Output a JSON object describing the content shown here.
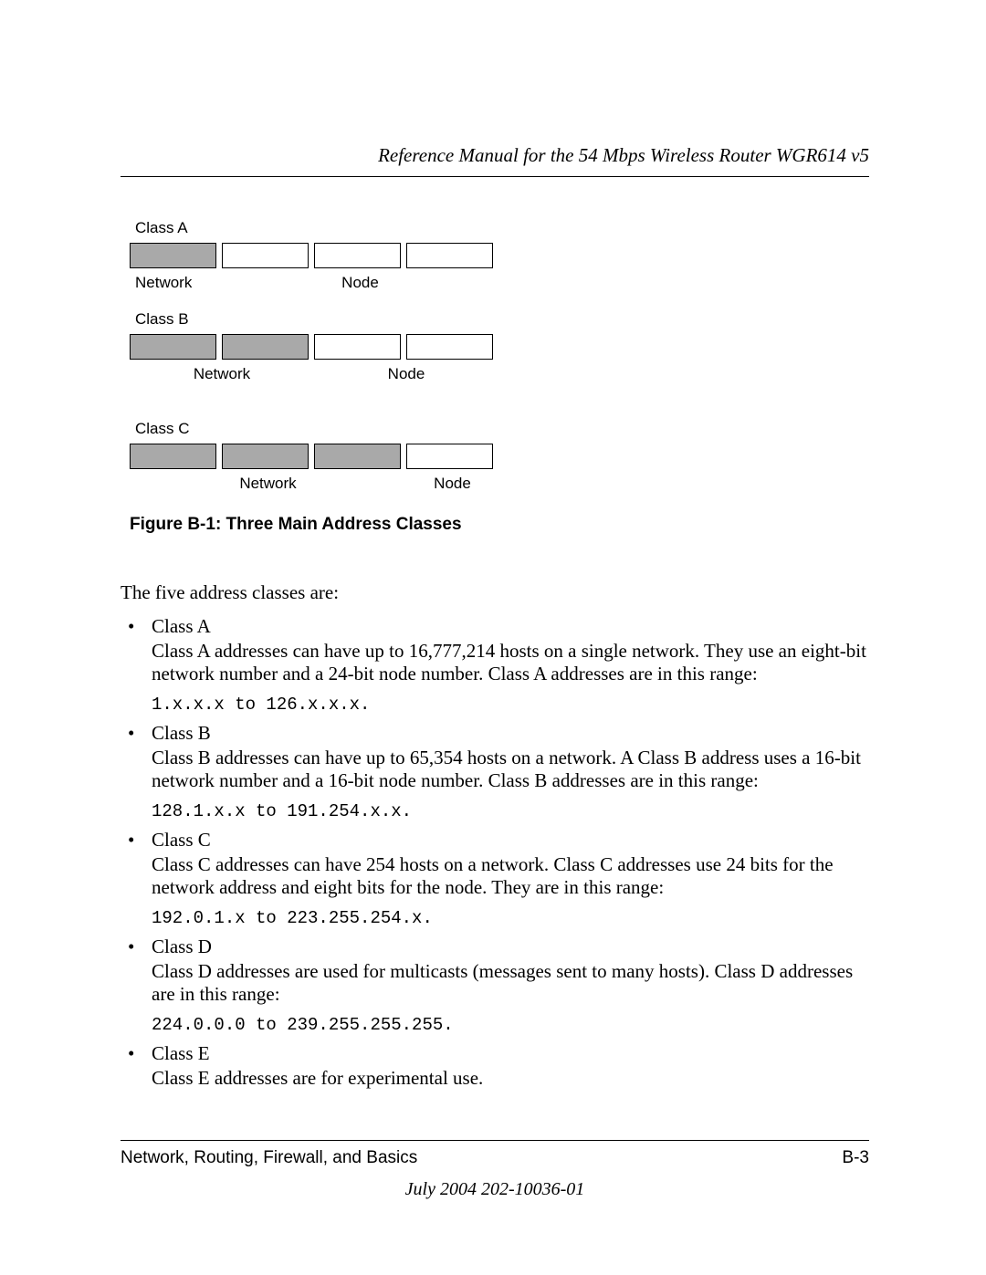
{
  "header": {
    "title": "Reference Manual for the 54 Mbps Wireless Router WGR614 v5"
  },
  "figure": {
    "caption": "Figure B-1:   Three Main Address Classes",
    "box_colors": {
      "shaded": "#a9a9a9",
      "unshaded": "#ffffff",
      "border": "#000000"
    },
    "classA": {
      "label": "Class A",
      "shaded_count": 1,
      "unshaded_count": 3,
      "left_label": "Network",
      "right_label": "Node"
    },
    "classB": {
      "label": "Class B",
      "shaded_count": 2,
      "unshaded_count": 2,
      "left_label": "Network",
      "right_label": "Node"
    },
    "classC": {
      "label": "Class C",
      "shaded_count": 3,
      "unshaded_count": 1,
      "left_label": "Network",
      "right_label": "Node"
    }
  },
  "intro": "The five address classes are:",
  "items": {
    "a": {
      "title": "Class A",
      "desc": "Class A addresses can have up to 16,777,214 hosts on a single network. They use an eight-bit network number and a 24-bit node number. Class A addresses are in this range:",
      "code": "1.x.x.x to 126.x.x.x."
    },
    "b": {
      "title": "Class B",
      "desc": "Class B addresses can have up to 65,354 hosts on a network. A Class B address uses a 16-bit network number and a 16-bit node number. Class B addresses are in this range:",
      "code": "128.1.x.x to 191.254.x.x."
    },
    "c": {
      "title": "Class C",
      "desc": "Class C addresses can have 254 hosts on a network. Class C addresses use 24 bits for the network address and eight bits for the node. They are in this range:",
      "code": "192.0.1.x to 223.255.254.x."
    },
    "d": {
      "title": "Class D",
      "desc": "Class D addresses are used for multicasts (messages sent to many hosts). Class D addresses are in this range:",
      "code": "224.0.0.0 to 239.255.255.255."
    },
    "e": {
      "title": "Class E",
      "desc": "Class E addresses are for experimental use."
    }
  },
  "footer": {
    "section": "Network, Routing, Firewall, and Basics",
    "page": "B-3",
    "date": "July 2004 202-10036-01"
  }
}
